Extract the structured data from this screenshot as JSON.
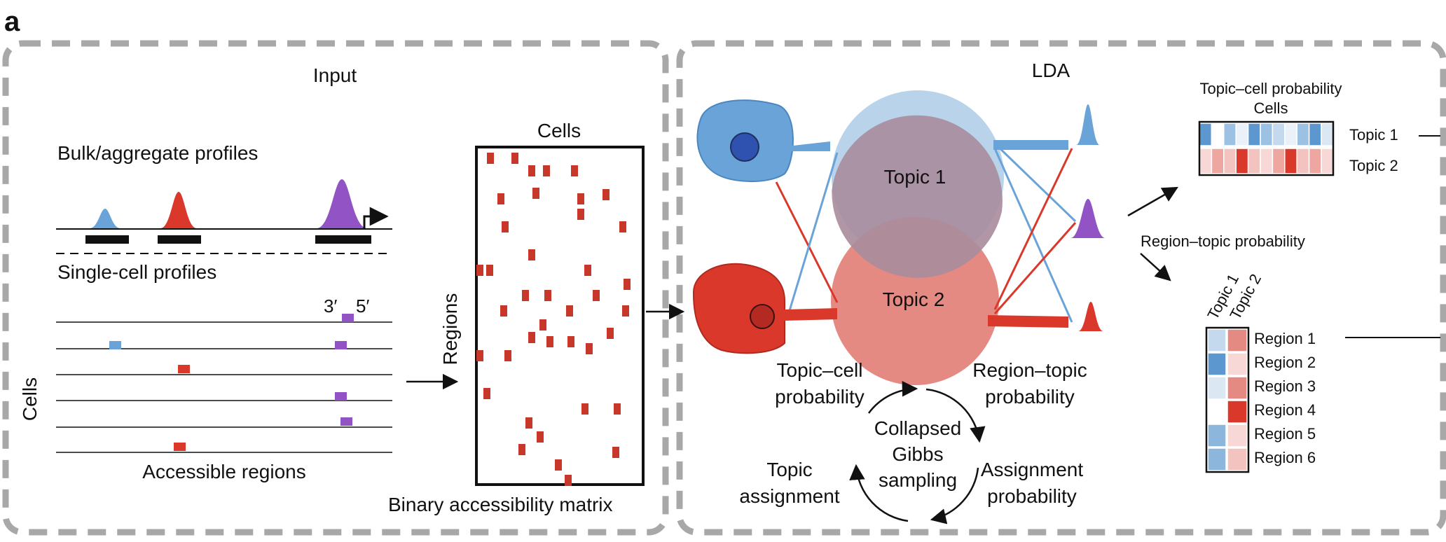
{
  "panel_letter": "a",
  "input": {
    "title": "Input",
    "bulk_label": "Bulk/aggregate profiles",
    "single_cell_label": "Single-cell profiles",
    "prime3": "3′",
    "prime5": "5′",
    "cells_label": "Cells",
    "accessible_regions": "Accessible regions",
    "bulk_peaks": [
      {
        "color": "#6aa3d8"
      },
      {
        "color": "#d9382b"
      },
      {
        "color": "#9254c4"
      }
    ]
  },
  "matrix": {
    "cells_label": "Cells",
    "regions_label": "Regions",
    "caption": "Binary accessibility matrix",
    "color": "#c8382a"
  },
  "lda": {
    "title": "LDA",
    "topic1": "Topic 1",
    "topic2": "Topic 2",
    "topic_cell_line1": "Topic–cell",
    "topic_cell_line2": "probability",
    "region_topic_line1": "Region–topic",
    "region_topic_line2": "probability",
    "gibbs_line1": "Collapsed",
    "gibbs_line2": "Gibbs",
    "gibbs_line3": "sampling",
    "topic_assign_line1": "Topic",
    "topic_assign_line2": "assignment",
    "assign_prob_line1": "Assignment",
    "assign_prob_line2": "probability",
    "colors": {
      "blue": "#6aa3d8",
      "red": "#d9382b",
      "topic1_fill": "#b8d3ea",
      "topic2_fill": "#e58a82"
    }
  },
  "outputs": {
    "topic_cell_title_line1": "Topic–cell probability",
    "topic_cell_title_line2": "Cells",
    "topic_rows": [
      "Topic 1",
      "Topic 2"
    ],
    "region_topic_label": "Region–topic probability",
    "region_col_headers": [
      "Topic 1",
      "Topic 2"
    ],
    "regions": [
      "Region 1",
      "Region 2",
      "Region 3",
      "Region 4",
      "Region 5",
      "Region 6"
    ]
  }
}
